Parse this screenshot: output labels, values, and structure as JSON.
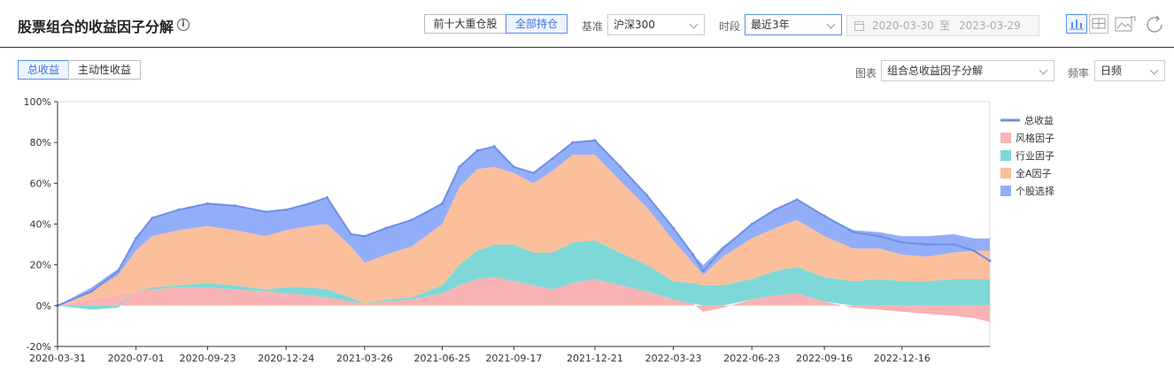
{
  "header": {
    "title": "股票组合的收益因子分解",
    "info_glyph": "i",
    "holding_tabs": [
      "前十大重仓股",
      "全部持仓"
    ],
    "benchmark_label": "基准",
    "benchmark_value": "沪深300",
    "period_label": "时段",
    "period_value": "最近3年",
    "date_from": "2020-03-30",
    "date_sep": "至",
    "date_to": "2023-03-29"
  },
  "controls": {
    "return_tabs": [
      "总收益",
      "主动性收益"
    ],
    "chart_label": "图表",
    "chart_value": "组合总收益因子分解",
    "freq_label": "频率",
    "freq_value": "日频"
  },
  "icons": [
    "info-icon",
    "bar-chart-icon",
    "grid-icon",
    "image-export-icon",
    "refresh-icon",
    "calendar-icon",
    "chevron-down-icon"
  ],
  "colors": {
    "accent": "#5b8def",
    "total": "#6e8fe6",
    "style": "#f9b3b4",
    "industry": "#7fd8d8",
    "market": "#fbc09b",
    "stock": "#93aef8"
  },
  "chart_data": {
    "type": "area",
    "ylim": [
      -20,
      100
    ],
    "yticks": [
      "-20%",
      "0%",
      "20%",
      "40%",
      "60%",
      "80%",
      "100%"
    ],
    "xticks": [
      "2020-03-31",
      "2020-07-01",
      "2020-09-23",
      "2020-12-24",
      "2021-03-26",
      "2021-06-25",
      "2021-09-17",
      "2021-12-21",
      "2022-03-23",
      "2022-06-23",
      "2022-09-16",
      "2022-12-16"
    ],
    "x": [
      "2020-03-31",
      "2020-05-10",
      "2020-06-10",
      "2020-07-01",
      "2020-07-20",
      "2020-08-20",
      "2020-09-23",
      "2020-10-25",
      "2020-11-30",
      "2020-12-24",
      "2021-01-20",
      "2021-02-10",
      "2021-03-10",
      "2021-03-26",
      "2021-04-20",
      "2021-05-20",
      "2021-06-25",
      "2021-07-15",
      "2021-08-05",
      "2021-08-25",
      "2021-09-17",
      "2021-10-10",
      "2021-11-01",
      "2021-11-25",
      "2021-12-21",
      "2022-01-20",
      "2022-02-20",
      "2022-03-23",
      "2022-04-15",
      "2022-04-27",
      "2022-05-20",
      "2022-06-23",
      "2022-07-20",
      "2022-08-15",
      "2022-09-16",
      "2022-10-20",
      "2022-11-20",
      "2022-12-16",
      "2023-01-15",
      "2023-02-15",
      "2023-03-10",
      "2023-03-29"
    ],
    "series": [
      {
        "name": "风格因子",
        "kind": "area",
        "values": [
          0,
          3,
          5,
          7,
          8,
          9,
          9,
          8,
          7,
          6,
          5,
          4,
          2,
          1,
          2,
          3,
          6,
          10,
          13,
          14,
          12,
          10,
          8,
          11,
          13,
          10,
          7,
          3,
          1,
          -3,
          -1,
          3,
          5,
          6,
          2,
          -1,
          -2,
          -3,
          -4,
          -5,
          -6,
          -8
        ]
      },
      {
        "name": "行业因子",
        "kind": "area",
        "values": [
          0,
          -2,
          -1,
          0,
          1,
          1,
          2,
          2,
          1,
          3,
          4,
          4,
          2,
          0,
          1,
          1,
          4,
          10,
          14,
          16,
          18,
          16,
          18,
          20,
          19,
          16,
          13,
          9,
          10,
          10,
          10,
          10,
          12,
          13,
          12,
          12,
          13,
          12,
          12,
          13,
          13,
          13
        ]
      },
      {
        "name": "全A因子",
        "kind": "area",
        "values": [
          0,
          4,
          10,
          20,
          25,
          27,
          28,
          27,
          26,
          28,
          30,
          32,
          25,
          20,
          22,
          25,
          30,
          38,
          40,
          38,
          35,
          34,
          40,
          43,
          42,
          35,
          28,
          20,
          10,
          5,
          14,
          20,
          21,
          23,
          20,
          16,
          15,
          13,
          12,
          13,
          14,
          14
        ]
      },
      {
        "name": "个股选择",
        "kind": "area",
        "values": [
          0,
          2,
          3,
          6,
          9,
          10,
          11,
          12,
          12,
          10,
          11,
          13,
          6,
          13,
          13,
          13,
          10,
          10,
          9,
          10,
          3,
          5,
          6,
          6,
          7,
          7,
          6,
          6,
          4,
          5,
          5,
          7,
          9,
          10,
          10,
          9,
          8,
          9,
          10,
          9,
          6,
          6
        ]
      },
      {
        "name": "总收益",
        "kind": "line",
        "values": [
          0,
          7,
          17,
          33,
          43,
          47,
          50,
          49,
          46,
          47,
          50,
          53,
          35,
          34,
          38,
          42,
          50,
          68,
          76,
          78,
          68,
          65,
          72,
          80,
          81,
          68,
          54,
          38,
          25,
          17,
          28,
          40,
          47,
          52,
          44,
          36,
          34,
          31,
          30,
          30,
          27,
          22
        ]
      }
    ]
  }
}
